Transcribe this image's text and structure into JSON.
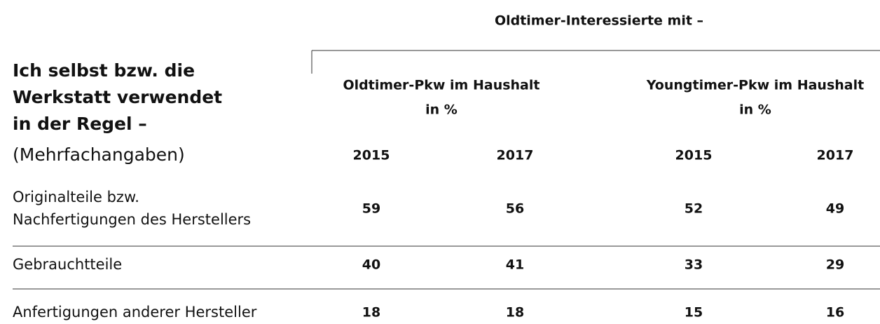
{
  "header": {
    "title": "Oldtimer-Interessierte mit –"
  },
  "table": {
    "corner": {
      "lines": [
        "Ich selbst bzw. die",
        "Werkstatt verwendet",
        "in der Regel –"
      ],
      "note": "(Mehrfachangaben)"
    },
    "groups": [
      {
        "name": "Oldtimer-Pkw im Haushalt",
        "unit": "in %",
        "years": [
          "2015",
          "2017"
        ]
      },
      {
        "name": "Youngtimer-Pkw im Haushalt",
        "unit": "in %",
        "years": [
          "2015",
          "2017"
        ]
      }
    ],
    "rows": [
      {
        "label": [
          "Originalteile bzw.",
          "Nachfertigungen des Herstellers"
        ],
        "values": [
          59,
          56,
          52,
          49
        ]
      },
      {
        "label": [
          "Gebrauchtteile"
        ],
        "values": [
          40,
          41,
          33,
          29
        ]
      },
      {
        "label": [
          "Anfertigungen anderer Hersteller"
        ],
        "values": [
          18,
          18,
          15,
          16
        ]
      }
    ]
  }
}
